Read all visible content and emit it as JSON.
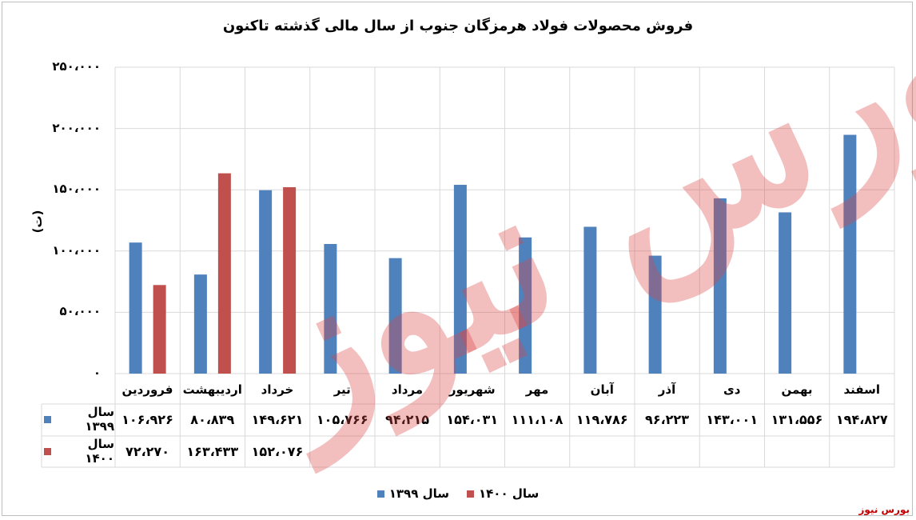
{
  "chart_data": {
    "type": "bar",
    "title": "فروش محصولات فولاد هرمزگان جنوب از سال مالی گذشته تاکنون",
    "ylabel": "(ت)",
    "ylim": [
      0,
      250000
    ],
    "yticks": [
      "۰",
      "۵۰،۰۰۰",
      "۱۰۰،۰۰۰",
      "۱۵۰،۰۰۰",
      "۲۰۰،۰۰۰",
      "۲۵۰،۰۰۰"
    ],
    "grid": true,
    "legend_position": "bottom",
    "categories": [
      "فروردین",
      "اردیبهشت",
      "خرداد",
      "تیر",
      "مرداد",
      "شهریور",
      "مهر",
      "آبان",
      "آذر",
      "دی",
      "بهمن",
      "اسفند"
    ],
    "series": [
      {
        "name": "سال ۱۳۹۹",
        "color": "#4f81bd",
        "values": [
          106926,
          80839,
          149621,
          105766,
          94215,
          154031,
          111108,
          119786,
          96223,
          143001,
          131556,
          194827
        ],
        "labels": [
          "۱۰۶،۹۲۶",
          "۸۰،۸۳۹",
          "۱۴۹،۶۲۱",
          "۱۰۵،۷۶۶",
          "۹۴،۲۱۵",
          "۱۵۴،۰۳۱",
          "۱۱۱،۱۰۸",
          "۱۱۹،۷۸۶",
          "۹۶،۲۲۳",
          "۱۴۳،۰۰۱",
          "۱۳۱،۵۵۶",
          "۱۹۴،۸۲۷"
        ]
      },
      {
        "name": "سال ۱۴۰۰",
        "color": "#c0504d",
        "values": [
          72270,
          163433,
          152076,
          null,
          null,
          null,
          null,
          null,
          null,
          null,
          null,
          null
        ],
        "labels": [
          "۷۲،۲۷۰",
          "۱۶۳،۴۳۳",
          "۱۵۲،۰۷۶",
          "",
          "",
          "",
          "",
          "",
          "",
          "",
          "",
          ""
        ]
      }
    ]
  },
  "watermark": "بورس نیوز",
  "source": "بورس نیوز"
}
